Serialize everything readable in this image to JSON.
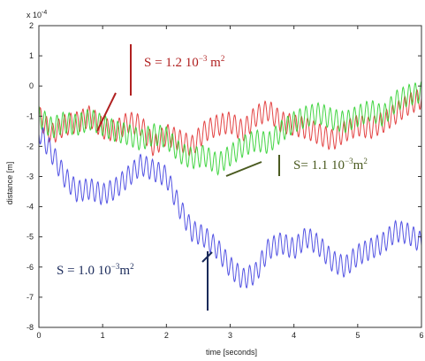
{
  "chart_data": {
    "type": "line",
    "title": "",
    "xlabel": "time [seconds]",
    "ylabel": "distance [m]",
    "y_multiplier": "x 10",
    "y_multiplier_exp": "-4",
    "xlim": [
      0,
      6
    ],
    "ylim": [
      -8,
      2
    ],
    "xticks": [
      "0",
      "1",
      "2",
      "3",
      "4",
      "5",
      "6"
    ],
    "yticks": [
      "2",
      "1",
      "0",
      "-1",
      "-2",
      "-3",
      "-4",
      "-5",
      "-6",
      "-7",
      "-8"
    ],
    "grid": false,
    "series": [
      {
        "color": "#e03030",
        "x": [
          0,
          0.2,
          0.4,
          0.6,
          0.8,
          1.0,
          1.2,
          1.4,
          1.6,
          1.8,
          2.0,
          2.2,
          2.4,
          2.6,
          2.8,
          3.0,
          3.2,
          3.4,
          3.6,
          3.8,
          4.0,
          4.2,
          4.4,
          4.6,
          4.8,
          5.0,
          5.2,
          5.4,
          5.6,
          5.8,
          6.0
        ],
        "y": [
          -1.0,
          -1.6,
          -1.3,
          -1.2,
          -1.0,
          -1.4,
          -1.5,
          -1.2,
          -1.3,
          -2.0,
          -1.6,
          -1.8,
          -2.0,
          -1.5,
          -1.3,
          -1.2,
          -1.5,
          -1.0,
          -0.8,
          -1.2,
          -1.3,
          -1.4,
          -1.6,
          -1.8,
          -1.5,
          -1.3,
          -1.4,
          -1.2,
          -0.9,
          -0.6,
          -0.4
        ],
        "osc_amplitude": 0.35
      },
      {
        "color": "#30d030",
        "x": [
          0,
          0.2,
          0.4,
          0.6,
          0.8,
          1.0,
          1.2,
          1.4,
          1.6,
          1.8,
          2.0,
          2.2,
          2.4,
          2.6,
          2.8,
          3.0,
          3.2,
          3.4,
          3.6,
          3.8,
          4.0,
          4.2,
          4.4,
          4.6,
          4.8,
          5.0,
          5.2,
          5.4,
          5.6,
          5.8,
          6.0
        ],
        "y": [
          -1.0,
          -1.4,
          -1.2,
          -1.3,
          -1.1,
          -1.3,
          -1.5,
          -1.6,
          -1.8,
          -1.6,
          -1.7,
          -2.2,
          -2.4,
          -2.3,
          -2.6,
          -2.3,
          -2.0,
          -1.8,
          -1.9,
          -1.5,
          -1.2,
          -1.0,
          -0.9,
          -1.1,
          -1.2,
          -1.0,
          -0.8,
          -1.0,
          -0.5,
          -0.3,
          -0.2
        ],
        "osc_amplitude": 0.35
      },
      {
        "color": "#4040e0",
        "x": [
          0,
          0.2,
          0.4,
          0.6,
          0.8,
          1.0,
          1.2,
          1.4,
          1.6,
          1.8,
          2.0,
          2.2,
          2.4,
          2.6,
          2.8,
          3.0,
          3.2,
          3.4,
          3.6,
          3.8,
          4.0,
          4.2,
          4.4,
          4.6,
          4.8,
          5.0,
          5.2,
          5.4,
          5.6,
          5.8,
          6.0
        ],
        "y": [
          -1.5,
          -2.2,
          -3.0,
          -3.5,
          -3.4,
          -3.6,
          -3.4,
          -3.0,
          -2.6,
          -2.8,
          -3.0,
          -4.0,
          -4.8,
          -5.0,
          -5.4,
          -6.0,
          -6.4,
          -6.2,
          -5.4,
          -5.2,
          -5.4,
          -5.0,
          -5.3,
          -5.8,
          -6.0,
          -5.6,
          -5.4,
          -5.2,
          -4.8,
          -4.9,
          -5.2
        ],
        "osc_amplitude": 0.35
      }
    ],
    "annotations": [
      {
        "text": "S = 1.2 10",
        "sup": "−3",
        "unit": " m",
        "unit_sup": "2",
        "color": "#b02020"
      },
      {
        "text": "S= 1.1 10",
        "sup": "−3",
        "unit": "m",
        "unit_sup": "2",
        "color": "#4a5a20"
      },
      {
        "text": "S = 1.0 10",
        "sup": "−3",
        "unit": "m",
        "unit_sup": "2",
        "color": "#1a2a5a"
      }
    ]
  }
}
